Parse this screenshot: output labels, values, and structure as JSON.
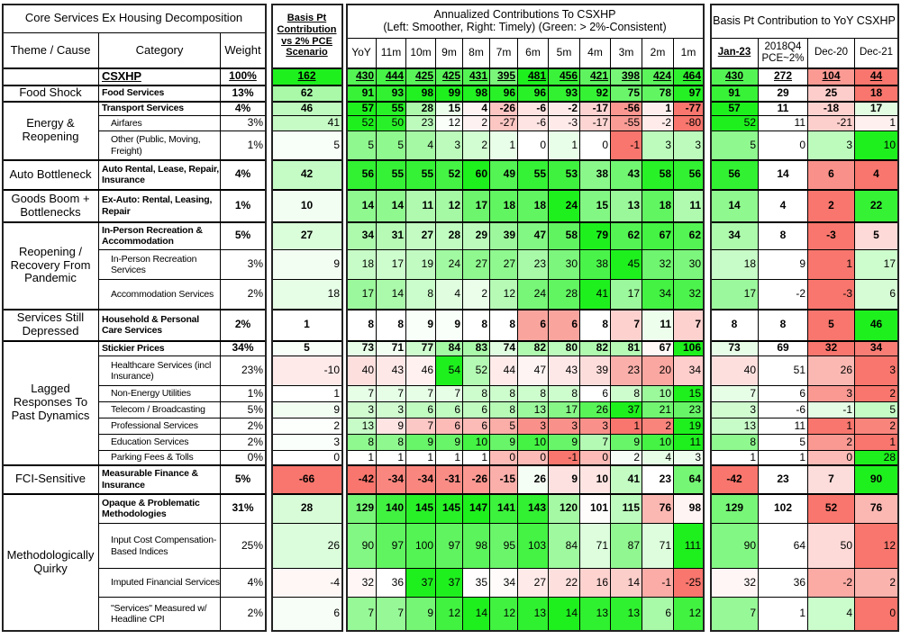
{
  "left": {
    "title": "Core Services Ex Housing Decomposition",
    "col_theme": "Theme / Cause",
    "col_category": "Category",
    "col_weight": "Weight"
  },
  "basis": {
    "header": "Basis Pt Contribution vs 2% PCE Scenario"
  },
  "annualized": {
    "title_line1": "Annualized Contributions To CSXHP",
    "title_line2": "(Left: Smoother, Right: Timely) (Green: > 2%-Consistent)",
    "columns": [
      "YoY",
      "11m",
      "10m",
      "9m",
      "8m",
      "7m",
      "6m",
      "5m",
      "4m",
      "3m",
      "2m",
      "1m"
    ]
  },
  "yoy_block": {
    "title": "Basis Pt Contribution to YoY CSXHP",
    "columns": [
      "Jan-23",
      "2018Q4 PCE~2%",
      "Dec-20",
      "Dec-21"
    ]
  },
  "colors": {
    "positive": "#1ef01e",
    "negative": "#f8766d",
    "neutral": "#ffffff"
  },
  "groups": [
    {
      "theme": "",
      "rows": [
        {
          "category": "CSXHP",
          "weight": "100%",
          "basis": 162,
          "annualized": [
            430,
            444,
            425,
            425,
            431,
            395,
            481,
            456,
            421,
            398,
            424,
            464
          ],
          "yoy": [
            430,
            272,
            104,
            44
          ],
          "level": "total"
        }
      ]
    },
    {
      "theme": "Food Shock",
      "rows": [
        {
          "category": "Food Services",
          "weight": "13%",
          "basis": 62,
          "annualized": [
            91,
            93,
            98,
            99,
            98,
            96,
            96,
            93,
            92,
            75,
            78,
            97
          ],
          "yoy": [
            91,
            29,
            25,
            18
          ],
          "level": "main"
        }
      ]
    },
    {
      "theme": "Energy & Reopening",
      "rows": [
        {
          "category": "Transport Services",
          "weight": "4%",
          "basis": 46,
          "annualized": [
            57,
            55,
            28,
            15,
            4,
            -26,
            -6,
            -2,
            -17,
            -56,
            1,
            -77
          ],
          "yoy": [
            57,
            11,
            -18,
            17
          ],
          "level": "main"
        },
        {
          "category": "Airfares",
          "weight": "3%",
          "basis": 41,
          "annualized": [
            52,
            50,
            23,
            12,
            2,
            -27,
            -6,
            -3,
            -17,
            -55,
            -2,
            -80
          ],
          "yoy": [
            52,
            11,
            -21,
            1
          ],
          "level": "sub"
        },
        {
          "category": "Other (Public, Moving, Freight)",
          "weight": "1%",
          "basis": 5,
          "annualized": [
            5,
            5,
            4,
            3,
            2,
            1,
            0,
            1,
            0,
            -1,
            3,
            3
          ],
          "yoy": [
            5,
            0,
            3,
            10
          ],
          "level": "sub"
        }
      ]
    },
    {
      "theme": "Auto Bottleneck",
      "rows": [
        {
          "category": "Auto Rental, Lease, Repair, Insurance",
          "weight": "4%",
          "basis": 42,
          "annualized": [
            56,
            55,
            55,
            52,
            60,
            49,
            55,
            53,
            38,
            43,
            58,
            56
          ],
          "yoy": [
            56,
            14,
            6,
            4
          ],
          "level": "main"
        }
      ]
    },
    {
      "theme": "Goods Boom + Bottlenecks",
      "rows": [
        {
          "category": "Ex-Auto: Rental, Leasing, Repair",
          "weight": "1%",
          "basis": 10,
          "annualized": [
            14,
            14,
            11,
            12,
            17,
            18,
            18,
            24,
            15,
            13,
            18,
            11
          ],
          "yoy": [
            14,
            4,
            2,
            22
          ],
          "level": "main"
        }
      ]
    },
    {
      "theme": "Reopening / Recovery From Pandemic",
      "rows": [
        {
          "category": "In-Person Recreation & Accommodation",
          "weight": "5%",
          "basis": 27,
          "annualized": [
            34,
            31,
            27,
            28,
            29,
            39,
            47,
            58,
            79,
            62,
            67,
            62
          ],
          "yoy": [
            34,
            8,
            -3,
            5
          ],
          "level": "main"
        },
        {
          "category": "In-Person Recreation Services",
          "weight": "3%",
          "basis": 9,
          "annualized": [
            18,
            17,
            19,
            24,
            27,
            27,
            23,
            30,
            38,
            45,
            32,
            30
          ],
          "yoy": [
            18,
            9,
            1,
            17
          ],
          "level": "sub"
        },
        {
          "category": "Accommodation Services",
          "weight": "2%",
          "basis": 18,
          "annualized": [
            17,
            14,
            8,
            4,
            2,
            12,
            24,
            28,
            41,
            17,
            34,
            32
          ],
          "yoy": [
            17,
            -2,
            -3,
            6
          ],
          "level": "sub"
        }
      ]
    },
    {
      "theme": "Services Still Depressed",
      "rows": [
        {
          "category": "Household & Personal Care Services",
          "weight": "2%",
          "basis": 1,
          "annualized": [
            8,
            8,
            9,
            9,
            8,
            8,
            6,
            6,
            8,
            7,
            11,
            7
          ],
          "yoy": [
            8,
            8,
            5,
            46
          ],
          "level": "main"
        }
      ]
    },
    {
      "theme": "Lagged Responses To Past Dynamics",
      "rows": [
        {
          "category": "Stickier Prices",
          "weight": "34%",
          "basis": 5,
          "annualized": [
            73,
            71,
            77,
            84,
            83,
            74,
            82,
            80,
            82,
            81,
            67,
            106
          ],
          "yoy": [
            73,
            69,
            32,
            34
          ],
          "level": "main"
        },
        {
          "category": "Healthcare Services (incl Insurance)",
          "weight": "23%",
          "basis": -10,
          "annualized": [
            40,
            43,
            46,
            54,
            52,
            44,
            47,
            43,
            39,
            23,
            20,
            34
          ],
          "yoy": [
            40,
            51,
            26,
            3
          ],
          "level": "sub"
        },
        {
          "category": "Non-Energy Utilities",
          "weight": "1%",
          "basis": 1,
          "annualized": [
            7,
            7,
            7,
            7,
            8,
            8,
            8,
            8,
            6,
            8,
            10,
            15
          ],
          "yoy": [
            7,
            6,
            3,
            2
          ],
          "level": "sub"
        },
        {
          "category": "Telecom / Broadcasting",
          "weight": "5%",
          "basis": 9,
          "annualized": [
            3,
            3,
            6,
            6,
            6,
            8,
            13,
            17,
            26,
            37,
            21,
            23
          ],
          "yoy": [
            3,
            -6,
            -1,
            5
          ],
          "level": "sub"
        },
        {
          "category": "Professional Services",
          "weight": "2%",
          "basis": 2,
          "annualized": [
            13,
            9,
            7,
            6,
            6,
            5,
            3,
            3,
            3,
            1,
            2,
            19
          ],
          "yoy": [
            13,
            11,
            1,
            2
          ],
          "level": "sub"
        },
        {
          "category": "Education Services",
          "weight": "2%",
          "basis": 3,
          "annualized": [
            8,
            8,
            9,
            9,
            10,
            9,
            10,
            9,
            7,
            9,
            10,
            11
          ],
          "yoy": [
            8,
            5,
            2,
            1
          ],
          "level": "sub"
        },
        {
          "category": "Parking Fees & Tolls",
          "weight": "0%",
          "basis": 0,
          "annualized": [
            1,
            1,
            1,
            1,
            1,
            0,
            0,
            -1,
            0,
            2,
            4,
            3
          ],
          "yoy": [
            1,
            1,
            0,
            28
          ],
          "level": "sub"
        }
      ]
    },
    {
      "theme": "FCI-Sensitive",
      "rows": [
        {
          "category": "Measurable Finance & Insurance",
          "weight": "5%",
          "basis": -66,
          "annualized": [
            -42,
            -34,
            -34,
            -31,
            -26,
            -15,
            26,
            9,
            10,
            41,
            23,
            64
          ],
          "yoy": [
            -42,
            23,
            7,
            90
          ],
          "level": "main"
        }
      ]
    },
    {
      "theme": "Methodologically Quirky",
      "rows": [
        {
          "category": "Opaque & Problematic Methodologies",
          "weight": "31%",
          "basis": 28,
          "annualized": [
            129,
            140,
            145,
            145,
            147,
            141,
            143,
            120,
            101,
            115,
            76,
            98
          ],
          "yoy": [
            129,
            102,
            52,
            76
          ],
          "level": "main"
        },
        {
          "category": "Input Cost Compensation-Based Indices",
          "weight": "25%",
          "basis": 26,
          "annualized": [
            90,
            97,
            100,
            97,
            98,
            95,
            103,
            84,
            71,
            87,
            71,
            111
          ],
          "yoy": [
            90,
            64,
            50,
            12
          ],
          "level": "sub"
        },
        {
          "category": "Imputed Financial Services",
          "weight": "4%",
          "basis": -4,
          "annualized": [
            32,
            36,
            37,
            37,
            35,
            34,
            27,
            22,
            16,
            14,
            -1,
            -25
          ],
          "yoy": [
            32,
            36,
            -2,
            2
          ],
          "level": "sub"
        },
        {
          "category": "\"Services\" Measured w/ Headline CPI",
          "weight": "2%",
          "basis": 6,
          "annualized": [
            7,
            7,
            9,
            12,
            14,
            12,
            13,
            14,
            13,
            13,
            6,
            12
          ],
          "yoy": [
            7,
            1,
            4,
            0
          ],
          "level": "sub"
        }
      ]
    }
  ]
}
